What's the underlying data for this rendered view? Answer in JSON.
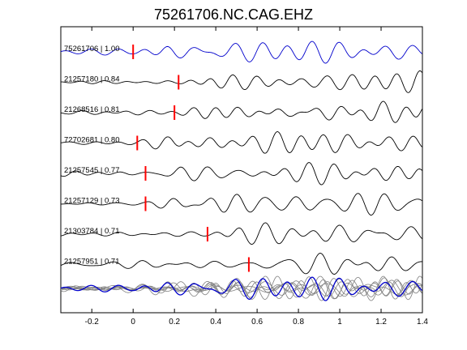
{
  "chart_data": {
    "type": "line",
    "title": "75261706.NC.CAG.EHZ",
    "xlabel": "",
    "ylabel": "",
    "xlim": [
      -0.35,
      1.4
    ],
    "x_ticks": [
      -0.2,
      0,
      0.2,
      0.4,
      0.6,
      0.8,
      1,
      1.2,
      1.4
    ],
    "x_tick_labels": [
      "-0.2",
      "0",
      "0.2",
      "0.4",
      "0.6",
      "0.8",
      "1",
      "1.2",
      "1.4"
    ],
    "grid": false,
    "colors": {
      "reference": "#0000cc",
      "trace": "#000000",
      "pick": "#ff0000",
      "stack": "#808080"
    },
    "traces": [
      {
        "label": "75261706 | 1.00",
        "event_id": "75261706",
        "correlation": 1.0,
        "pick_time": 0.0,
        "color": "reference"
      },
      {
        "label": "21257180 | 0.84",
        "event_id": "21257180",
        "correlation": 0.84,
        "pick_time": 0.22,
        "color": "trace"
      },
      {
        "label": "21268516 | 0.81",
        "event_id": "21268516",
        "correlation": 0.81,
        "pick_time": 0.2,
        "color": "trace"
      },
      {
        "label": "72702681 | 0.80",
        "event_id": "72702681",
        "correlation": 0.8,
        "pick_time": 0.02,
        "color": "trace"
      },
      {
        "label": "21257545 | 0.77",
        "event_id": "21257545",
        "correlation": 0.77,
        "pick_time": 0.06,
        "color": "trace"
      },
      {
        "label": "21257129 | 0.73",
        "event_id": "21257129",
        "correlation": 0.73,
        "pick_time": 0.06,
        "color": "trace"
      },
      {
        "label": "21303784 | 0.71",
        "event_id": "21303784",
        "correlation": 0.71,
        "pick_time": 0.36,
        "color": "trace"
      },
      {
        "label": "21257951 | 0.71",
        "event_id": "21257951",
        "correlation": 0.71,
        "pick_time": 0.56,
        "color": "trace"
      }
    ],
    "overlay_stack": {
      "description": "all traces overlaid",
      "reference_color": "reference",
      "others_color": "stack"
    }
  }
}
